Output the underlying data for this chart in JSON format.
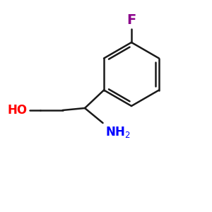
{
  "background_color": "#ffffff",
  "line_color": "#1a1a1a",
  "F_color": "#8B008B",
  "HO_color": "#FF0000",
  "NH2_color": "#0000FF",
  "line_width": 1.8,
  "font_size_labels": 12
}
